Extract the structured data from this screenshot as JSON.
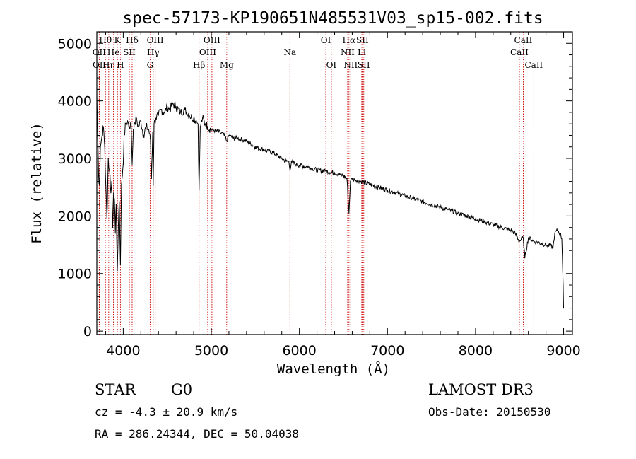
{
  "chart_data": {
    "type": "line",
    "title": "spec-57173-KP190651N485531V03_sp15-002.fits",
    "xlabel": "Wavelength (Å)",
    "ylabel": "Flux (relative)",
    "xlim": [
      3700,
      9100
    ],
    "ylim": [
      -60,
      5200
    ],
    "xticks": [
      4000,
      5000,
      6000,
      7000,
      8000,
      9000
    ],
    "yticks": [
      0,
      1000,
      2000,
      3000,
      4000,
      5000
    ],
    "series": [
      {
        "name": "spectrum",
        "x": [
          3700,
          3720,
          3730,
          3740,
          3760,
          3775,
          3790,
          3800,
          3815,
          3830,
          3840,
          3850,
          3860,
          3870,
          3880,
          3890,
          3900,
          3910,
          3920,
          3933,
          3945,
          3955,
          3968,
          3980,
          3990,
          4000,
          4010,
          4030,
          4050,
          4070,
          4090,
          4101,
          4115,
          4130,
          4150,
          4170,
          4200,
          4230,
          4260,
          4290,
          4310,
          4320,
          4335,
          4340,
          4350,
          4370,
          4400,
          4430,
          4470,
          4500,
          4530,
          4560,
          4600,
          4650,
          4700,
          4750,
          4800,
          4830,
          4850,
          4861,
          4875,
          4900,
          4930,
          4960,
          5000,
          5050,
          5100,
          5150,
          5175,
          5200,
          5250,
          5300,
          5400,
          5500,
          5600,
          5700,
          5800,
          5850,
          5880,
          5893,
          5910,
          5950,
          6000,
          6100,
          6200,
          6300,
          6400,
          6500,
          6540,
          6563,
          6580,
          6600,
          6700,
          6800,
          6900,
          7000,
          7100,
          7200,
          7300,
          7400,
          7500,
          7600,
          7700,
          7800,
          7900,
          8000,
          8100,
          8200,
          8300,
          8400,
          8450,
          8498,
          8542,
          8560,
          8600,
          8662,
          8700,
          8750,
          8800,
          8850,
          8880,
          8900,
          8930,
          8960,
          8980,
          8995,
          9000
        ],
        "values": [
          4100,
          2700,
          2550,
          3200,
          3400,
          3550,
          3200,
          2600,
          1950,
          3000,
          2800,
          2700,
          2400,
          2600,
          1800,
          2400,
          2300,
          1700,
          2200,
          1050,
          1850,
          2250,
          1150,
          2550,
          2700,
          2900,
          3400,
          3600,
          3650,
          3550,
          3600,
          2900,
          3500,
          3600,
          3700,
          3550,
          3650,
          3400,
          3550,
          3500,
          3300,
          2650,
          3450,
          2550,
          3600,
          3700,
          3750,
          3850,
          3800,
          3900,
          3850,
          3950,
          3900,
          3800,
          3850,
          3750,
          3700,
          3650,
          3600,
          2450,
          3550,
          3700,
          3600,
          3550,
          3500,
          3480,
          3450,
          3400,
          3300,
          3400,
          3350,
          3350,
          3300,
          3200,
          3150,
          3100,
          3000,
          2950,
          2950,
          2800,
          2950,
          2900,
          2880,
          2850,
          2800,
          2780,
          2750,
          2700,
          2650,
          2050,
          2600,
          2650,
          2600,
          2550,
          2500,
          2450,
          2400,
          2350,
          2300,
          2250,
          2200,
          2150,
          2100,
          2050,
          2000,
          1950,
          1900,
          1850,
          1800,
          1750,
          1700,
          1560,
          1620,
          1270,
          1620,
          1560,
          1550,
          1520,
          1500,
          1480,
          1450,
          1700,
          1750,
          1700,
          1600,
          800,
          400
        ]
      }
    ],
    "spectral_lines": [
      {
        "label": "Hθ",
        "x": 3798,
        "row": 0
      },
      {
        "label": "OII",
        "x": 3727,
        "row": 1
      },
      {
        "label": "OII",
        "x": 3729,
        "row": 2
      },
      {
        "label": "Hη",
        "x": 3835,
        "row": 2
      },
      {
        "label": "He",
        "x": 3889,
        "row": 1
      },
      {
        "label": "K",
        "x": 3934,
        "row": 0
      },
      {
        "label": "H",
        "x": 3968,
        "row": 2
      },
      {
        "label": "SII",
        "x": 4069,
        "row": 1
      },
      {
        "label": "Hδ",
        "x": 4101,
        "row": 0
      },
      {
        "label": "G",
        "x": 4305,
        "row": 2
      },
      {
        "label": "Hγ",
        "x": 4340,
        "row": 1
      },
      {
        "label": "OIII",
        "x": 4363,
        "row": 0
      },
      {
        "label": "Hβ",
        "x": 4861,
        "row": 2
      },
      {
        "label": "OIII",
        "x": 4959,
        "row": 1
      },
      {
        "label": "OIII",
        "x": 5007,
        "row": 0
      },
      {
        "label": "Mg",
        "x": 5175,
        "row": 2
      },
      {
        "label": "Na",
        "x": 5893,
        "row": 1
      },
      {
        "label": "OI",
        "x": 6300,
        "row": 0
      },
      {
        "label": "OI",
        "x": 6363,
        "row": 2
      },
      {
        "label": "NII",
        "x": 6548,
        "row": 1
      },
      {
        "label": "Hα",
        "x": 6563,
        "row": 0
      },
      {
        "label": "NII",
        "x": 6583,
        "row": 2
      },
      {
        "label": "Li",
        "x": 6708,
        "row": 1
      },
      {
        "label": "SII",
        "x": 6716,
        "row": 0
      },
      {
        "label": "SII",
        "x": 6731,
        "row": 2
      },
      {
        "label": "CaII",
        "x": 8498,
        "row": 1
      },
      {
        "label": "CaII",
        "x": 8542,
        "row": 0
      },
      {
        "label": "CaII",
        "x": 8662,
        "row": 2
      }
    ]
  },
  "info": {
    "object_type": "STAR",
    "subclass": "G0",
    "survey": "LAMOST DR3",
    "redshift": "cz = -4.3 ± 20.9 km/s",
    "obs_date": "Obs-Date: 20150530",
    "coords": "RA = 286.24344, DEC =  50.04038"
  },
  "colors": {
    "spectrum": "#000000",
    "line_markers": "#cc0000",
    "axes": "#000000"
  }
}
